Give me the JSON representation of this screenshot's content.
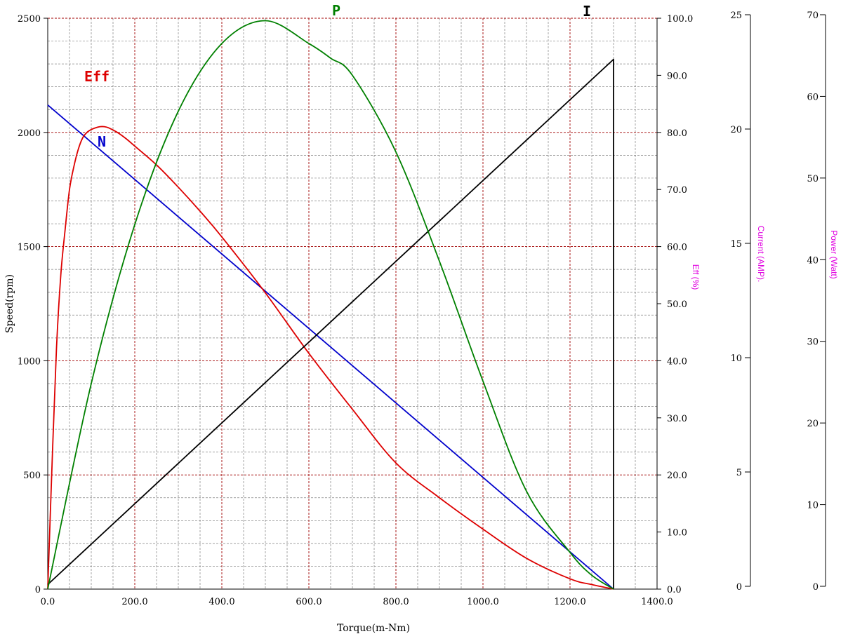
{
  "colors": {
    "speed": "#0000cc",
    "efficiency": "#dd0000",
    "current": "#000000",
    "power": "#008000",
    "major_grid": "#a00000",
    "minor_grid": "#808080",
    "secondary_axis_title": "#e000e0"
  },
  "chart_data": {
    "type": "line",
    "xlabel": "Torque(m-Nm)",
    "xlim": [
      0,
      1400
    ],
    "x_ticks": [
      "0.0",
      "200.0",
      "400.0",
      "600.0",
      "800.0",
      "1000.0",
      "1200.0",
      "1400.0"
    ],
    "grid": true,
    "axes": {
      "speed": {
        "label": "Speed(rpm)",
        "range": [
          0,
          2500
        ],
        "ticks": [
          "0",
          "500",
          "1000",
          "1500",
          "2000",
          "2500"
        ]
      },
      "efficiency": {
        "label": "Eff (%)",
        "range": [
          0,
          100
        ],
        "ticks": [
          "0.0",
          "10.0",
          "20.0",
          "30.0",
          "40.0",
          "50.0",
          "60.0",
          "70.0",
          "80.0",
          "90.0",
          "100.0"
        ]
      },
      "current": {
        "label": "Current (AMP).",
        "range": [
          0,
          25
        ],
        "ticks": [
          "0",
          "5",
          "10",
          "15",
          "20",
          "25"
        ]
      },
      "power": {
        "label": "Power (Watt)",
        "range": [
          0,
          70
        ],
        "ticks": [
          "0",
          "10",
          "20",
          "30",
          "40",
          "50",
          "60",
          "70"
        ]
      }
    },
    "series": [
      {
        "name": "N",
        "axis": "speed",
        "x": [
          0,
          1300
        ],
        "y": [
          2120,
          0
        ]
      },
      {
        "name": "Eff",
        "axis": "efficiency",
        "x": [
          0,
          10,
          20,
          30,
          40,
          50,
          60,
          70,
          80,
          90,
          100,
          110,
          120,
          130,
          140,
          160,
          180,
          200,
          250,
          300,
          350,
          400,
          500,
          600,
          700,
          800,
          900,
          1000,
          1100,
          1200,
          1250,
          1300
        ],
        "y": [
          0,
          22.0,
          42.0,
          55.0,
          63.0,
          70.0,
          74.0,
          77.0,
          79.0,
          80.0,
          80.5,
          80.8,
          81.0,
          81.0,
          80.8,
          80.0,
          78.9,
          77.6,
          74.3,
          70.4,
          66.2,
          61.7,
          51.9,
          41.3,
          31.5,
          22.1,
          16.0,
          10.5,
          5.4,
          1.8,
          0.8,
          0
        ]
      },
      {
        "name": "I",
        "axis": "current",
        "x": [
          0,
          1300,
          1300
        ],
        "y": [
          0.2,
          23.2,
          0
        ]
      },
      {
        "name": "P",
        "axis": "power",
        "x": [
          0,
          100,
          200,
          300,
          400,
          500,
          600,
          650,
          700,
          800,
          900,
          1000,
          1100,
          1200,
          1250,
          1300
        ],
        "y": [
          0,
          25.2,
          44.7,
          58.6,
          66.9,
          69.7,
          66.9,
          65.1,
          63.0,
          53.6,
          40.2,
          25.5,
          12.0,
          4.5,
          1.7,
          0
        ]
      }
    ],
    "curve_labels": [
      "Eff",
      "N",
      "P",
      "I"
    ]
  }
}
